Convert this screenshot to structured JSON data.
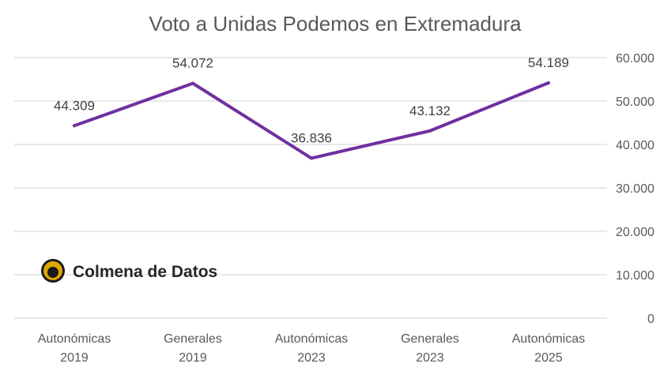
{
  "chart_data": {
    "type": "line",
    "title": "Voto a Unidas Podemos en Extremadura",
    "categories": [
      [
        "Autonómicas",
        "2019"
      ],
      [
        "Generales",
        "2019"
      ],
      [
        "Autonómicas",
        "2023"
      ],
      [
        "Generales",
        "2023"
      ],
      [
        "Autonómicas",
        "2025"
      ]
    ],
    "values": [
      44309,
      54072,
      36836,
      43132,
      54189
    ],
    "data_labels": [
      "44.309",
      "54.072",
      "36.836",
      "43.132",
      "54.189"
    ],
    "ylim": [
      0,
      60000
    ],
    "yticks": [
      0,
      10000,
      20000,
      30000,
      40000,
      50000,
      60000
    ],
    "ytick_labels": [
      "0",
      "10.000",
      "20.000",
      "30.000",
      "40.000",
      "50.000",
      "60.000"
    ],
    "y_axis_side": "right",
    "grid": true,
    "line_color": "#7030a0",
    "xlabel": "",
    "ylabel": ""
  },
  "watermark": {
    "text": "Colmena de Datos",
    "logo": "colmena-de-datos-logo"
  }
}
